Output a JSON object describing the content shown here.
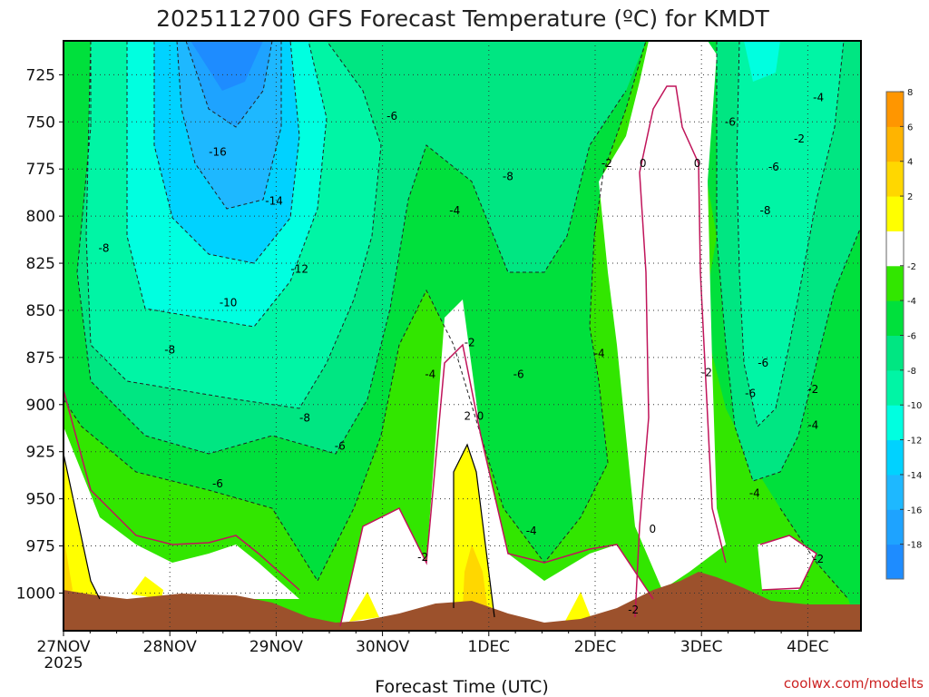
{
  "chart_data": {
    "type": "heatmap",
    "title": "2025112700 GFS Forecast Temperature (ºC) for KMDT",
    "xlabel": "Forecast Time (UTC)",
    "ylabel": "",
    "x_ticks": [
      "27NOV",
      "28NOV",
      "29NOV",
      "30NOV",
      "1DEC",
      "2DEC",
      "3DEC",
      "4DEC"
    ],
    "x_year_label": "2025",
    "y_ticks": [
      725,
      750,
      775,
      800,
      825,
      850,
      875,
      900,
      925,
      950,
      975,
      1000
    ],
    "x_range_days": [
      0,
      7.5
    ],
    "y_range_hpa": [
      1020,
      707
    ],
    "grid": true,
    "credit": "coolwx.com/modelts",
    "colorbar": {
      "levels": [
        -20,
        -18,
        -16,
        -14,
        -12,
        -10,
        -8,
        -6,
        -4,
        -2,
        2,
        4,
        6,
        8,
        10
      ],
      "labels": [
        "-18",
        "-16",
        "-14",
        "-12",
        "-10",
        "-8",
        "-6",
        "-4",
        "-2",
        "2",
        "4",
        "6",
        "8"
      ],
      "colors": [
        "#1e8cff",
        "#1ea3ff",
        "#1eb8ff",
        "#00d2ff",
        "#00ffe0",
        "#00f5a5",
        "#00e682",
        "#00e03c",
        "#32e600",
        "#ffffff",
        "#ffff00",
        "#ffd700",
        "#ffb400",
        "#ff9600"
      ]
    },
    "contour_labels": [
      {
        "text": "-16",
        "x": 1.45,
        "y": 766
      },
      {
        "text": "-14",
        "x": 1.98,
        "y": 792
      },
      {
        "text": "-12",
        "x": 2.22,
        "y": 828
      },
      {
        "text": "-10",
        "x": 1.55,
        "y": 846
      },
      {
        "text": "-8",
        "x": 0.38,
        "y": 817
      },
      {
        "text": "-8",
        "x": 1.0,
        "y": 871
      },
      {
        "text": "-8",
        "x": 2.27,
        "y": 907
      },
      {
        "text": "-8",
        "x": 4.18,
        "y": 779
      },
      {
        "text": "-8",
        "x": 6.6,
        "y": 797
      },
      {
        "text": "-6",
        "x": 1.45,
        "y": 942
      },
      {
        "text": "-6",
        "x": 2.6,
        "y": 922
      },
      {
        "text": "-6",
        "x": 3.09,
        "y": 747
      },
      {
        "text": "-6",
        "x": 4.28,
        "y": 884
      },
      {
        "text": "-6",
        "x": 6.27,
        "y": 750
      },
      {
        "text": "-6",
        "x": 6.68,
        "y": 774
      },
      {
        "text": "-6",
        "x": 6.58,
        "y": 878
      },
      {
        "text": "-6",
        "x": 6.46,
        "y": 894
      },
      {
        "text": "-4",
        "x": 3.45,
        "y": 884
      },
      {
        "text": "-4",
        "x": 3.68,
        "y": 797
      },
      {
        "text": "-4",
        "x": 4.4,
        "y": 967
      },
      {
        "text": "-4",
        "x": 5.04,
        "y": 873
      },
      {
        "text": "-4",
        "x": 6.5,
        "y": 947
      },
      {
        "text": "-4",
        "x": 7.05,
        "y": 911
      },
      {
        "text": "-4",
        "x": 7.1,
        "y": 737
      },
      {
        "text": "-2",
        "x": 3.38,
        "y": 981
      },
      {
        "text": "-2",
        "x": 3.82,
        "y": 867
      },
      {
        "text": "-2",
        "x": 5.36,
        "y": 1009
      },
      {
        "text": "-2",
        "x": 5.11,
        "y": 772
      },
      {
        "text": "-2",
        "x": 6.05,
        "y": 883
      },
      {
        "text": "-2",
        "x": 6.92,
        "y": 759
      },
      {
        "text": "-2",
        "x": 7.05,
        "y": 892
      },
      {
        "text": "-2",
        "x": 7.1,
        "y": 982
      },
      {
        "text": "0",
        "x": 5.45,
        "y": 772
      },
      {
        "text": "0",
        "x": 5.96,
        "y": 772
      },
      {
        "text": "0",
        "x": 5.54,
        "y": 966
      },
      {
        "text": "0",
        "x": 3.92,
        "y": 906
      },
      {
        "text": "2",
        "x": 3.8,
        "y": 906
      }
    ]
  }
}
